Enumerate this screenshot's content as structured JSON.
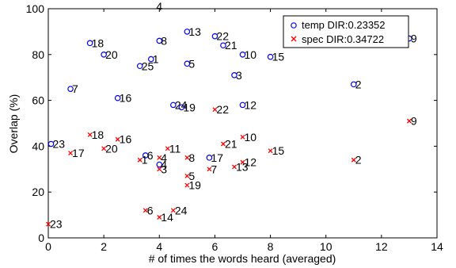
{
  "chart_data": {
    "type": "scatter",
    "title": "",
    "xlabel": "# of times the words heard (averaged)",
    "ylabel": "Overlap (%)",
    "xlim": [
      0,
      14
    ],
    "ylim": [
      0,
      100
    ],
    "xticks": [
      0,
      2,
      4,
      6,
      8,
      10,
      12,
      14
    ],
    "yticks": [
      0,
      20,
      40,
      60,
      80,
      100
    ],
    "grid": false,
    "legend_position": "top-right",
    "colors": {
      "temp": "#0000ff",
      "spec": "#ff0000"
    },
    "series": [
      {
        "name": "temp DIR:0.23352",
        "marker": "circle",
        "points": [
          {
            "label": "1",
            "x": 3.7,
            "y": 78
          },
          {
            "label": "2",
            "x": 11.0,
            "y": 67
          },
          {
            "label": "3",
            "x": 6.7,
            "y": 71
          },
          {
            "label": "4",
            "x": 4.0,
            "y": 32
          },
          {
            "label": "5",
            "x": 5.0,
            "y": 76
          },
          {
            "label": "6",
            "x": 3.5,
            "y": 36
          },
          {
            "label": "7",
            "x": 0.8,
            "y": 65
          },
          {
            "label": "8",
            "x": 4.0,
            "y": 86
          },
          {
            "label": "9",
            "x": 13.0,
            "y": 87
          },
          {
            "label": "10",
            "x": 7.0,
            "y": 80
          },
          {
            "label": "12",
            "x": 7.0,
            "y": 58
          },
          {
            "label": "13",
            "x": 5.0,
            "y": 90
          },
          {
            "label": "15",
            "x": 8.0,
            "y": 79
          },
          {
            "label": "16",
            "x": 2.5,
            "y": 61
          },
          {
            "label": "17",
            "x": 5.8,
            "y": 35
          },
          {
            "label": "18",
            "x": 1.5,
            "y": 85
          },
          {
            "label": "19",
            "x": 4.8,
            "y": 57
          },
          {
            "label": "20",
            "x": 2.0,
            "y": 80
          },
          {
            "label": "21",
            "x": 6.3,
            "y": 84
          },
          {
            "label": "22",
            "x": 6.0,
            "y": 88
          },
          {
            "label": "23",
            "x": 0.1,
            "y": 41
          },
          {
            "label": "24",
            "x": 4.5,
            "y": 58
          },
          {
            "label": "25",
            "x": 3.3,
            "y": 75
          }
        ]
      },
      {
        "name": "spec DIR:0.34722",
        "marker": "x",
        "points": [
          {
            "label": "2",
            "x": 11.0,
            "y": 34
          },
          {
            "label": "3",
            "x": 4.0,
            "y": 30
          },
          {
            "label": "4",
            "x": 4.0,
            "y": 35
          },
          {
            "label": "5",
            "x": 5.0,
            "y": 27
          },
          {
            "label": "6",
            "x": 3.5,
            "y": 12
          },
          {
            "label": "7",
            "x": 5.8,
            "y": 30
          },
          {
            "label": "8",
            "x": 5.0,
            "y": 35
          },
          {
            "label": "9",
            "x": 13.0,
            "y": 51
          },
          {
            "label": "10",
            "x": 7.0,
            "y": 44
          },
          {
            "label": "11",
            "x": 4.3,
            "y": 39
          },
          {
            "label": "12",
            "x": 7.0,
            "y": 33
          },
          {
            "label": "13",
            "x": 6.7,
            "y": 31
          },
          {
            "label": "14",
            "x": 4.0,
            "y": 9
          },
          {
            "label": "15",
            "x": 8.0,
            "y": 38
          },
          {
            "label": "16",
            "x": 2.5,
            "y": 43
          },
          {
            "label": "17",
            "x": 0.8,
            "y": 37
          },
          {
            "label": "18",
            "x": 1.5,
            "y": 45
          },
          {
            "label": "19",
            "x": 5.0,
            "y": 23
          },
          {
            "label": "20",
            "x": 2.0,
            "y": 39
          },
          {
            "label": "21",
            "x": 6.3,
            "y": 41
          },
          {
            "label": "22",
            "x": 6.0,
            "y": 56
          },
          {
            "label": "23",
            "x": 0.0,
            "y": 6
          },
          {
            "label": "24",
            "x": 4.5,
            "y": 12
          },
          {
            "label": "1",
            "x": 3.3,
            "y": 34
          }
        ]
      }
    ],
    "annotations": [
      {
        "text": "4",
        "x": 4.0,
        "y": 101
      }
    ]
  }
}
